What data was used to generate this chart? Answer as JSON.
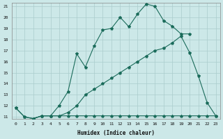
{
  "xlabel": "Humidex (Indice chaleur)",
  "bg_color": "#cce8e8",
  "line_color": "#1a6b5a",
  "grid_color": "#aacccc",
  "xlim": [
    0,
    23
  ],
  "ylim": [
    11,
    21
  ],
  "xticks": [
    0,
    1,
    2,
    3,
    4,
    5,
    6,
    7,
    8,
    9,
    10,
    11,
    12,
    13,
    14,
    15,
    16,
    17,
    18,
    19,
    20,
    21,
    22,
    23
  ],
  "yticks": [
    11,
    12,
    13,
    14,
    15,
    16,
    17,
    18,
    19,
    20,
    21
  ],
  "curve1_x": [
    0,
    1,
    2,
    3,
    4,
    5,
    6,
    7,
    8,
    9,
    10,
    11,
    12,
    13,
    14,
    15,
    16,
    17,
    18,
    19,
    20
  ],
  "curve1_y": [
    11.8,
    11.0,
    10.85,
    11.1,
    11.1,
    12.05,
    13.3,
    16.7,
    15.5,
    17.4,
    18.85,
    19.0,
    20.0,
    19.15,
    20.3,
    21.2,
    21.0,
    19.7,
    19.2,
    18.5,
    18.5
  ],
  "curve2_x": [
    2,
    3,
    4,
    5,
    6,
    7,
    8,
    9,
    10,
    11,
    12,
    13,
    14,
    15,
    16,
    17,
    18,
    19,
    20,
    21,
    22,
    23
  ],
  "curve2_y": [
    10.85,
    11.1,
    11.1,
    11.1,
    11.4,
    12.0,
    13.0,
    13.5,
    14.0,
    14.5,
    15.0,
    15.5,
    16.0,
    16.5,
    17.0,
    17.2,
    17.7,
    18.3,
    16.8,
    14.7,
    12.3,
    11.1
  ],
  "curve3_x": [
    0,
    1,
    2,
    3,
    4,
    5,
    6,
    7,
    8,
    9,
    10,
    11,
    12,
    13,
    14,
    15,
    16,
    17,
    18,
    19,
    20,
    21,
    22,
    23
  ],
  "curve3_y": [
    11.8,
    11.0,
    10.85,
    11.1,
    11.1,
    11.1,
    11.1,
    11.1,
    11.1,
    11.1,
    11.1,
    11.1,
    11.1,
    11.1,
    11.1,
    11.1,
    11.1,
    11.1,
    11.1,
    11.1,
    11.1,
    11.1,
    11.1,
    11.1
  ]
}
